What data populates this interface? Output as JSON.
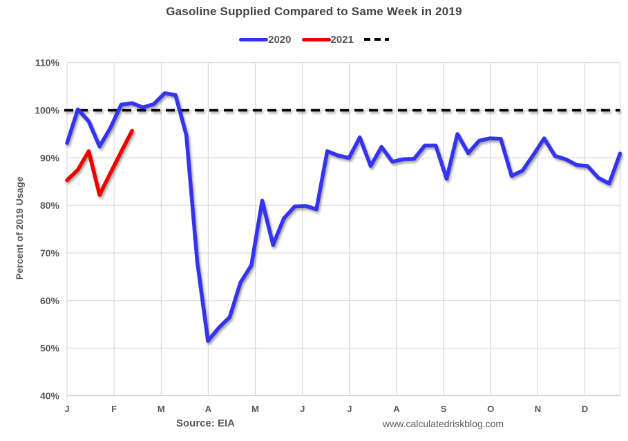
{
  "title": "Gasoline Supplied Compared to Same Week in 2019",
  "footer": {
    "source": "Source: EIA",
    "website": "www.calculatedriskblog.com"
  },
  "colors": {
    "series_2020": "#3333f0",
    "series_2021": "#ee0000",
    "reference_line": "#000000",
    "gridline": "#d9d9d9",
    "axis_line": "#c6c6c6",
    "text": "#595959",
    "title_text": "#444444"
  },
  "chart_data": {
    "type": "line",
    "title": "Gasoline Supplied Compared to Same Week in 2019",
    "xlabel": "",
    "ylabel": "Percent of 2019 Usage",
    "ylim": [
      40,
      110
    ],
    "grid": true,
    "legend_position": "top",
    "x_month_labels": [
      "J",
      "F",
      "M",
      "A",
      "M",
      "J",
      "J",
      "A",
      "S",
      "O",
      "N",
      "D"
    ],
    "y_ticks": [
      {
        "value": 40,
        "label": "40%"
      },
      {
        "value": 50,
        "label": "50%"
      },
      {
        "value": 60,
        "label": "60%"
      },
      {
        "value": 70,
        "label": "70%"
      },
      {
        "value": 80,
        "label": "80%"
      },
      {
        "value": 90,
        "label": "90%"
      },
      {
        "value": 100,
        "label": "100%"
      },
      {
        "value": 110,
        "label": "110%"
      }
    ],
    "reference_line": {
      "value": 100,
      "style": "dashed",
      "color": "#000000"
    },
    "series": [
      {
        "name": "2020",
        "color": "#3333f0",
        "unit": "percent of 2019 usage, weekly",
        "values": [
          93.1,
          100.2,
          97.7,
          92.4,
          96.3,
          101.2,
          101.5,
          100.6,
          101.3,
          103.6,
          103.2,
          94.8,
          68.3,
          51.5,
          54.3,
          56.5,
          63.8,
          67.4,
          81.0,
          71.7,
          77.3,
          79.8,
          79.9,
          79.2,
          91.4,
          90.5,
          90.0,
          94.3,
          88.3,
          92.3,
          89.2,
          89.7,
          89.8,
          92.6,
          92.6,
          85.6,
          95.0,
          91.0,
          93.6,
          94.1,
          94.0,
          86.2,
          87.3,
          90.6,
          94.1,
          90.4,
          89.7,
          88.5,
          88.3,
          85.8,
          84.6,
          90.9
        ]
      },
      {
        "name": "2021",
        "color": "#ee0000",
        "unit": "percent of 2019 usage, weekly",
        "values": [
          85.3,
          87.5,
          91.4,
          82.2,
          86.8,
          91.3,
          95.7
        ]
      }
    ]
  }
}
